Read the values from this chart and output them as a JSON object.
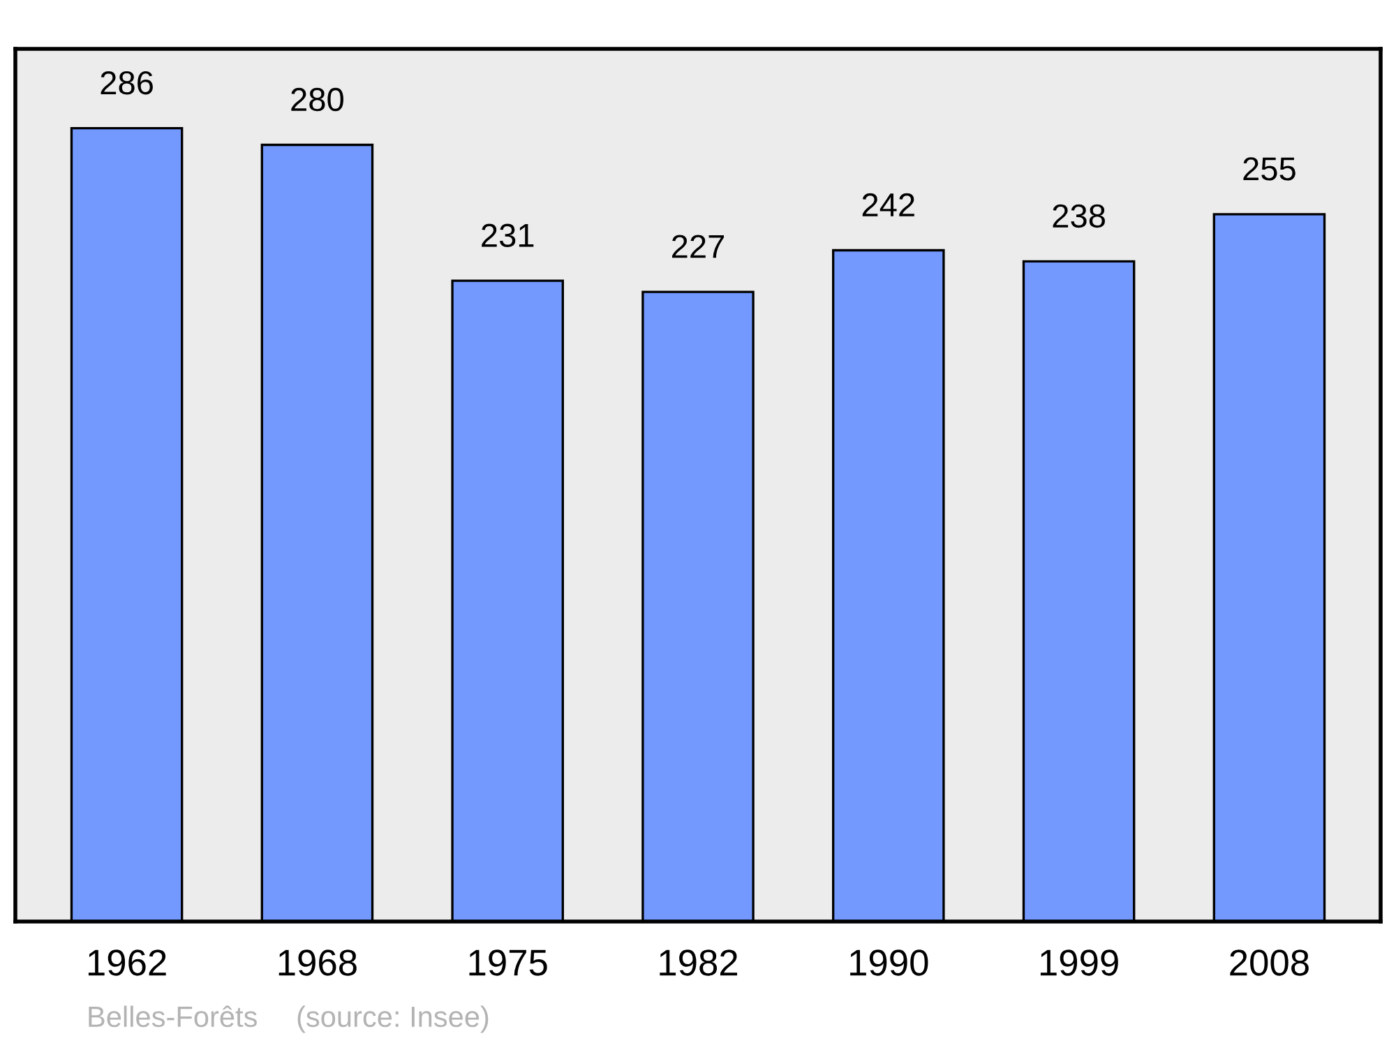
{
  "chart_data": {
    "type": "bar",
    "categories": [
      "1962",
      "1968",
      "1975",
      "1982",
      "1990",
      "1999",
      "2008"
    ],
    "values": [
      286,
      280,
      231,
      227,
      242,
      238,
      255
    ],
    "color": "#7399ff",
    "data_labels": true,
    "grid": false,
    "tick_labels": "x",
    "annotations": [
      "Belles-Forêts",
      "(source: Insee)"
    ]
  }
}
